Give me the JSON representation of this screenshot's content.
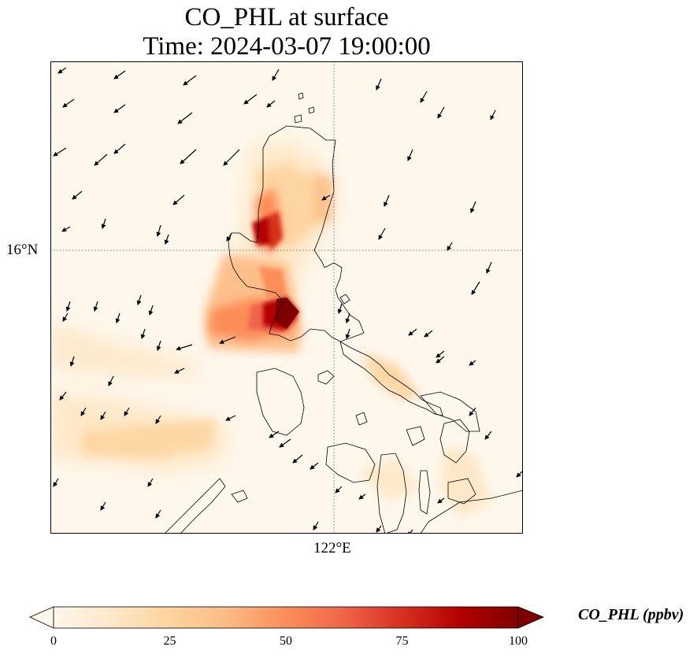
{
  "title_line1": "CO_PHL at surface",
  "title_line2": "Time: 2024-03-07 19:00:00",
  "gridline_labels": {
    "lat": "16°N",
    "lon": "122°E"
  },
  "colorbar": {
    "label": "CO_PHL (ppbv)",
    "min": 0,
    "max": 100,
    "ticks": [
      "0",
      "25",
      "50",
      "75",
      "100"
    ],
    "colormap": "OrRd",
    "extend": "both",
    "colors": [
      "#fff7ec",
      "#fee8c8",
      "#fdd49e",
      "#fdbb84",
      "#fc8d59",
      "#ef6548",
      "#d7301f",
      "#b30000",
      "#7f0000"
    ]
  },
  "map": {
    "projection": "PlateCarree",
    "gridlines": "dotted",
    "coastline_color": "#000000",
    "wind_vectors": "black quivers, mostly north-easterly flow"
  }
}
